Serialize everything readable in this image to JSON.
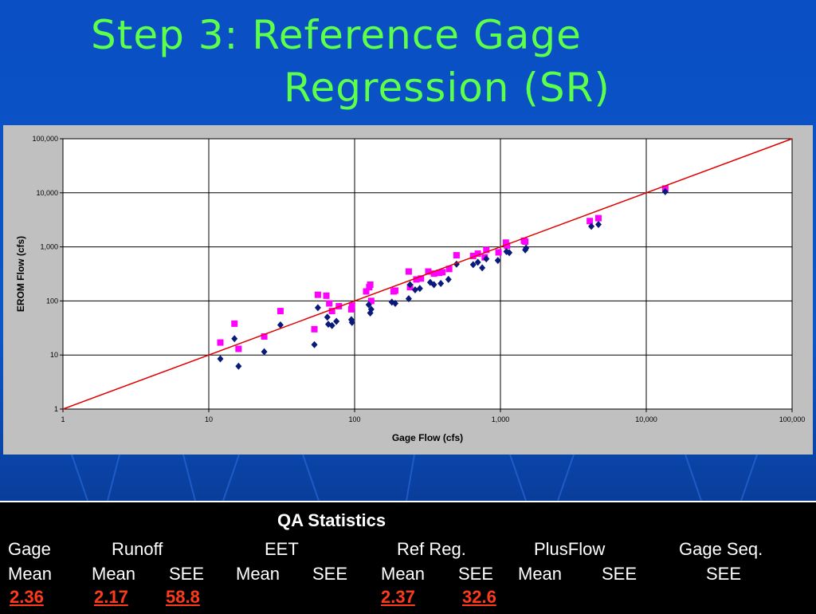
{
  "slide": {
    "title_line1": "Step 3: Reference Gage",
    "title_line2": "Regression (SR)",
    "colors": {
      "title": "#5cff4a",
      "background": "#0b56c8",
      "series_blue": "#0a1a7a",
      "series_magenta": "#ff00ff",
      "regression_line": "#e00000",
      "stats_highlight": "#ff3a1a"
    }
  },
  "chart_data": {
    "type": "scatter",
    "xlabel": "Gage Flow (cfs)",
    "ylabel": "EROM Flow (cfs)",
    "xscale": "log",
    "yscale": "log",
    "xlim": [
      1,
      100000
    ],
    "ylim": [
      1,
      100000
    ],
    "xticks": [
      "1",
      "10",
      "100",
      "1,000",
      "10,000",
      "100,000"
    ],
    "yticks": [
      "1",
      "10",
      "100",
      "1,000",
      "10,000",
      "100,000"
    ],
    "grid": true,
    "legend": "none",
    "reference_line": {
      "x": [
        1,
        100000
      ],
      "y": [
        1,
        100000
      ]
    },
    "series": [
      {
        "marker": "diamond",
        "color": "#0a1a7a",
        "x": [
          12,
          15,
          16,
          24,
          31,
          53,
          56,
          65,
          66,
          70,
          75,
          95,
          96,
          125,
          128,
          130,
          180,
          190,
          235,
          240,
          260,
          280,
          330,
          350,
          390,
          440,
          500,
          650,
          700,
          750,
          800,
          960,
          1100,
          1150,
          1480,
          1500,
          4200,
          4700,
          13500
        ],
        "y": [
          8.5,
          20,
          6.2,
          11.5,
          36,
          15.5,
          75,
          50,
          37,
          35,
          42,
          45,
          40,
          85,
          60,
          70,
          95,
          90,
          110,
          200,
          160,
          170,
          220,
          200,
          210,
          250,
          480,
          470,
          520,
          410,
          600,
          560,
          820,
          780,
          880,
          950,
          2400,
          2600,
          10500
        ]
      },
      {
        "marker": "square",
        "color": "#ff00ff",
        "x": [
          12,
          15,
          16,
          24,
          31,
          53,
          56,
          64,
          67,
          70,
          78,
          95,
          96,
          120,
          126,
          128,
          130,
          185,
          190,
          235,
          240,
          265,
          285,
          320,
          350,
          380,
          400,
          445,
          500,
          650,
          700,
          780,
          800,
          970,
          1090,
          1110,
          1450,
          1480,
          4100,
          4700,
          13500
        ],
        "y": [
          17,
          38,
          13,
          22,
          65,
          30,
          130,
          125,
          90,
          65,
          80,
          70,
          82,
          150,
          180,
          200,
          100,
          150,
          155,
          350,
          180,
          250,
          260,
          350,
          320,
          330,
          340,
          390,
          700,
          680,
          750,
          640,
          880,
          790,
          1200,
          1050,
          1300,
          1250,
          3000,
          3400,
          12000
        ]
      }
    ]
  },
  "qa": {
    "title": "QA Statistics",
    "groups": {
      "gage": "Gage",
      "runoff": "Runoff",
      "eet": "EET",
      "refreg": "Ref Reg.",
      "plusflow": "PlusFlow",
      "gageseq": "Gage Seq."
    },
    "sub": {
      "gage_mean": "Mean",
      "runoff_mean": "Mean",
      "runoff_see": "SEE",
      "eet_mean": "Mean",
      "eet_see": "SEE",
      "refreg_mean": "Mean",
      "refreg_see": "SEE",
      "plusflow_mean": "Mean",
      "plusflow_see": "SEE",
      "gageseq_see": "SEE"
    },
    "values": {
      "gage_mean": "2.36",
      "runoff_mean": "2.17",
      "runoff_see": "58.8",
      "refreg_mean": "2.37",
      "refreg_see": "32.6"
    }
  }
}
